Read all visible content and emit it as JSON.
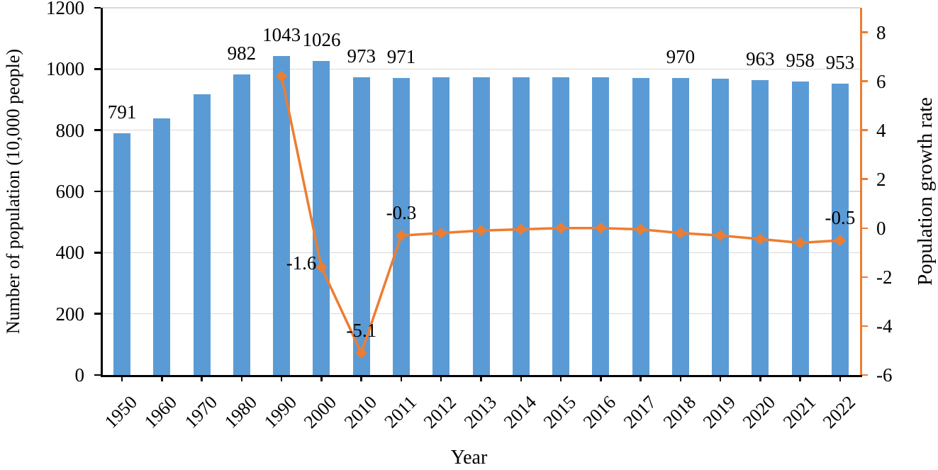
{
  "chart_data": {
    "type": "combo-bar-line",
    "title": "",
    "categories": [
      "1950",
      "1960",
      "1970",
      "1980",
      "1990",
      "2000",
      "2010",
      "2011",
      "2012",
      "2013",
      "2014",
      "2015",
      "2016",
      "2017",
      "2018",
      "2019",
      "2020",
      "2021",
      "2022"
    ],
    "series": [
      {
        "name": "Number of population",
        "chart_type": "bar",
        "axis": "left",
        "color": "#5B9BD5",
        "values": [
          791,
          839,
          918,
          982,
          1043,
          1026,
          973,
          971,
          972,
          972,
          972,
          972,
          972,
          971,
          970,
          968,
          963,
          958,
          953
        ]
      },
      {
        "name": "Population growth rate",
        "chart_type": "line",
        "axis": "right",
        "color": "#ED7D31",
        "values": [
          null,
          null,
          null,
          null,
          6.2,
          -1.6,
          -5.1,
          -0.3,
          -0.2,
          -0.1,
          -0.05,
          0,
          0,
          -0.05,
          -0.2,
          -0.3,
          -0.45,
          -0.6,
          -0.5
        ]
      }
    ],
    "bar_data_labels": {
      "1950": "791",
      "1980": "982",
      "1990": "1043",
      "2000": "1026",
      "2010": "973",
      "2011": "971",
      "2018": "970",
      "2020": "963",
      "2021": "958",
      "2022": "953"
    },
    "line_data_labels": [
      {
        "category": "2000",
        "text": "-1.6",
        "placement": "left"
      },
      {
        "category": "2010",
        "text": "-5.1",
        "placement": "above"
      },
      {
        "category": "2011",
        "text": "-0.3",
        "placement": "above"
      },
      {
        "category": "2022",
        "text": "-0.5",
        "placement": "above"
      }
    ],
    "axes": {
      "left": {
        "title": "Number of population (10,000 people)",
        "min": 0,
        "max": 1200,
        "tick_values": [
          0,
          200,
          400,
          600,
          800,
          1000,
          1200
        ],
        "tick_labels": [
          "0",
          "200",
          "400",
          "600",
          "800",
          "1000",
          "1200"
        ]
      },
      "right": {
        "title": "Population growth rate",
        "min": -6,
        "max": 9,
        "tick_values": [
          8,
          6,
          4,
          2,
          0,
          -2,
          -4,
          -6
        ],
        "tick_labels": [
          "8",
          "6",
          "4",
          "2",
          "0",
          "-2",
          "-4",
          "-6"
        ]
      },
      "x": {
        "title": "Year"
      }
    },
    "grid": true,
    "legend": "none",
    "colors": {
      "bar": "#5B9BD5",
      "line": "#ED7D31",
      "gridline": "#D9D9D9",
      "axis_left": "#000000",
      "axis_right": "#ED7D31",
      "text": "#000000"
    }
  }
}
